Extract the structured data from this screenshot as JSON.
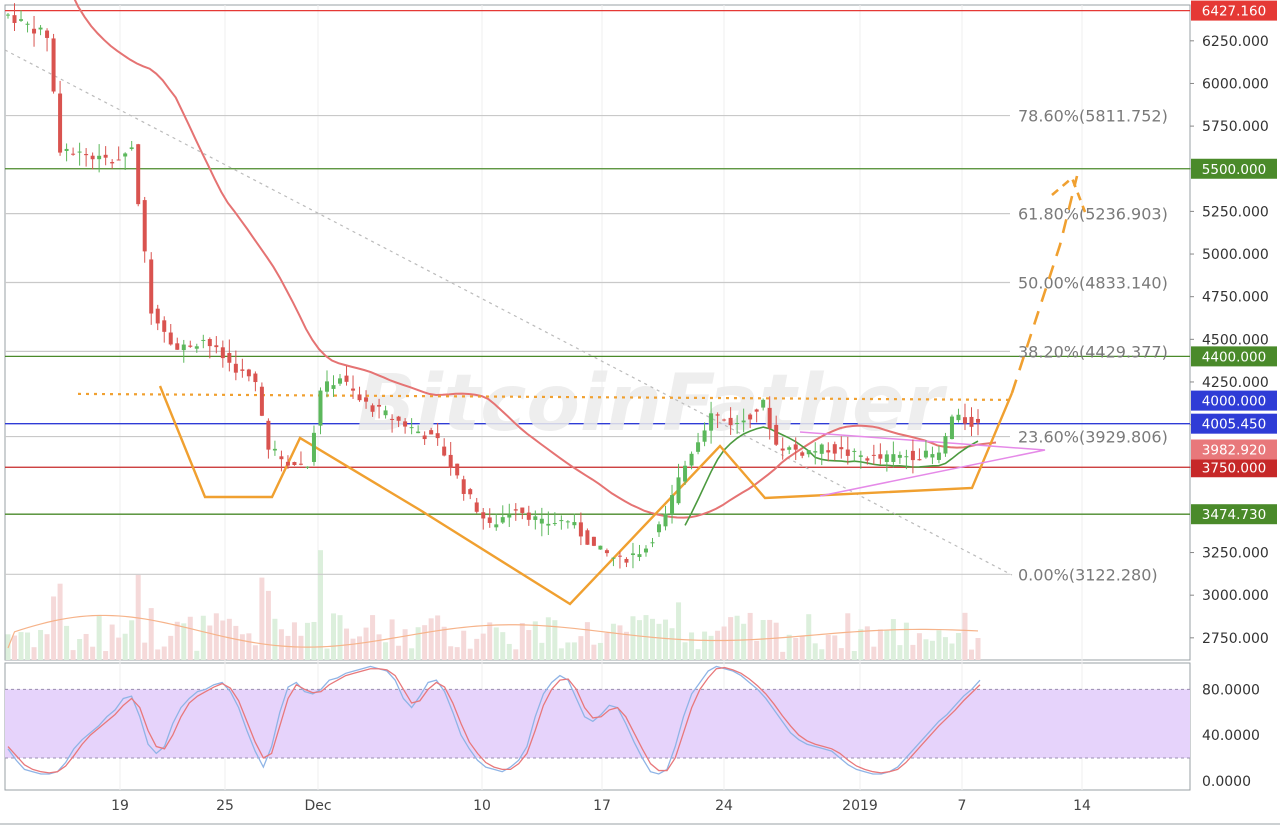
{
  "chart_data": [
    {
      "type": "candlestick",
      "title": "",
      "watermark": "BitcoinFather",
      "x_ticks": [
        "19",
        "25",
        "Dec",
        "10",
        "17",
        "24",
        "2019",
        "7",
        "14"
      ],
      "y_ticks": [
        "6250.000",
        "6000.000",
        "5750.000",
        "5500.000",
        "5250.000",
        "5000.000",
        "4750.000",
        "4500.000",
        "4250.000",
        "4000.000",
        "3750.000",
        "3250.000",
        "3000.000",
        "2750.000"
      ],
      "ylim": [
        2620,
        6460
      ],
      "horizontal_levels": [
        {
          "value": 6427.16,
          "label": "6427.160",
          "color": "#e53935"
        },
        {
          "value": 5500.0,
          "label": "5500.000",
          "color": "#4a8a2a"
        },
        {
          "value": 4400.0,
          "label": "4400.000",
          "color": "#4a8a2a"
        },
        {
          "value": 4005.45,
          "label": "4005.450",
          "color": "#2f3cd6"
        },
        {
          "value": 3750.0,
          "label": "3750.000",
          "color": "#c62828"
        },
        {
          "value": 3474.73,
          "label": "3474.730",
          "color": "#4a8a2a"
        }
      ],
      "price_tags": [
        {
          "value": 4000.0,
          "label": "4000.000",
          "color": "#2f3cd6"
        },
        {
          "value": 3982.92,
          "label": "3982.920",
          "color": "#e8787b"
        }
      ],
      "fibonacci": [
        {
          "level": "78.60%",
          "price": "5811.752",
          "label": "78.60%(5811.752)",
          "value": 5811.752
        },
        {
          "level": "61.80%",
          "price": "5236.903",
          "label": "61.80%(5236.903)",
          "value": 5236.903
        },
        {
          "level": "50.00%",
          "price": "4833.140",
          "label": "50.00%(4833.140)",
          "value": 4833.14
        },
        {
          "level": "38.20%",
          "price": "4429.377",
          "label": "38.20%(4429.377)",
          "value": 4429.377
        },
        {
          "level": "23.60%",
          "price": "3929.806",
          "label": "23.60%(3929.806)",
          "value": 3929.806
        },
        {
          "level": "0.00%",
          "price": "3122.280",
          "label": "0.00%(3122.280)",
          "value": 3122.28
        }
      ],
      "neckline_value": 4180,
      "grid": false
    },
    {
      "type": "line",
      "title": "",
      "y_ticks": [
        "80.0000",
        "40.0000",
        "0.0000"
      ],
      "ylim": [
        -8,
        103
      ],
      "band": [
        20,
        80
      ],
      "series": [
        {
          "color": "#8fb4e6",
          "values": [
            28,
            18,
            10,
            8,
            6,
            6,
            8,
            16,
            28,
            36,
            42,
            48,
            56,
            62,
            72,
            74,
            56,
            32,
            24,
            30,
            50,
            64,
            72,
            78,
            80,
            84,
            86,
            78,
            64,
            44,
            26,
            12,
            30,
            60,
            82,
            86,
            78,
            76,
            80,
            88,
            90,
            94,
            96,
            98,
            100,
            98,
            96,
            88,
            72,
            64,
            74,
            86,
            88,
            78,
            60,
            40,
            28,
            18,
            12,
            10,
            8,
            12,
            18,
            30,
            56,
            76,
            86,
            92,
            88,
            72,
            56,
            52,
            58,
            66,
            64,
            50,
            34,
            20,
            8,
            6,
            10,
            30,
            56,
            76,
            86,
            96,
            100,
            98,
            96,
            92,
            86,
            80,
            72,
            62,
            52,
            42,
            36,
            32,
            30,
            28,
            26,
            20,
            14,
            10,
            8,
            6,
            6,
            8,
            12,
            20,
            28,
            36,
            44,
            52,
            58,
            66,
            74,
            80,
            88
          ]
        },
        {
          "color": "#e8787b",
          "values": [
            30,
            22,
            14,
            10,
            8,
            7,
            8,
            13,
            22,
            32,
            40,
            46,
            52,
            58,
            66,
            72,
            64,
            44,
            30,
            28,
            40,
            56,
            68,
            74,
            78,
            82,
            85,
            81,
            70,
            52,
            34,
            20,
            24,
            48,
            72,
            84,
            80,
            77,
            78,
            84,
            88,
            92,
            94,
            96,
            98,
            98,
            97,
            92,
            80,
            68,
            70,
            80,
            86,
            82,
            68,
            50,
            34,
            24,
            16,
            12,
            10,
            10,
            15,
            24,
            44,
            66,
            80,
            88,
            89,
            80,
            64,
            55,
            56,
            62,
            64,
            56,
            42,
            28,
            15,
            9,
            9,
            20,
            42,
            64,
            80,
            90,
            98,
            99,
            97,
            94,
            89,
            83,
            76,
            67,
            57,
            48,
            40,
            35,
            32,
            30,
            28,
            24,
            18,
            13,
            10,
            8,
            7,
            8,
            10,
            16,
            24,
            32,
            40,
            48,
            55,
            62,
            70,
            77,
            84
          ]
        }
      ]
    }
  ]
}
